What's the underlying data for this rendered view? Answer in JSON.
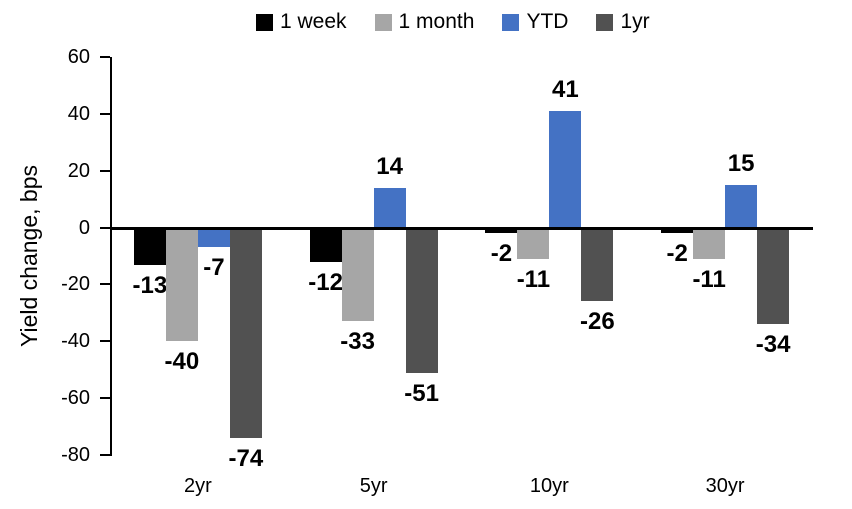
{
  "chart_data": {
    "type": "bar",
    "title": "",
    "ylabel": "Yield change, bps",
    "xlabel": "",
    "categories": [
      "2yr",
      "5yr",
      "10yr",
      "30yr"
    ],
    "series": [
      {
        "name": "1 week",
        "color": "#000000",
        "values": [
          -13,
          -12,
          -2,
          -2
        ]
      },
      {
        "name": "1 month",
        "color": "#A6A6A6",
        "values": [
          -40,
          -33,
          -11,
          -11
        ]
      },
      {
        "name": "YTD",
        "color": "#4472C4",
        "values": [
          -7,
          14,
          41,
          15
        ]
      },
      {
        "name": "1yr",
        "color": "#515151",
        "values": [
          -74,
          -51,
          -26,
          -34
        ]
      }
    ],
    "ylim": [
      -80,
      60
    ],
    "ytick_step": 20,
    "yticks": [
      60,
      40,
      20,
      0,
      -20,
      -40,
      -60,
      -80
    ],
    "grid": false,
    "legend_position": "top",
    "data_labels": true,
    "axis_color": "#000000",
    "background_color": "#FFFFFF",
    "label_color": "#000000"
  }
}
